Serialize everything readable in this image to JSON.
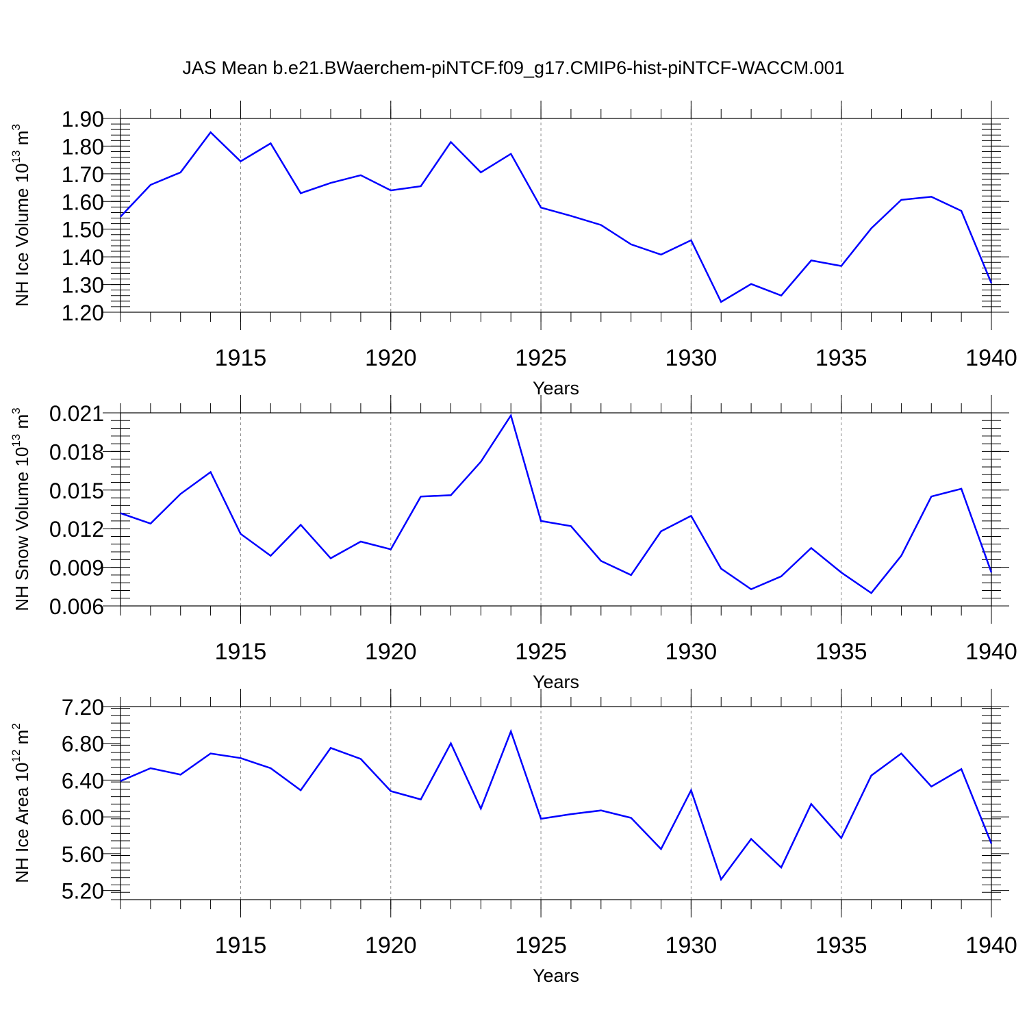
{
  "title": "JAS Mean b.e21.BWaerchem-piNTCF.f09_g17.CMIP6-hist-piNTCF-WACCM.001",
  "colors": {
    "line": "#0000ff",
    "axis": "#000000",
    "grid": "#888888"
  },
  "chart_data": [
    {
      "type": "line",
      "title": "JAS Mean b.e21.BWaerchem-piNTCF.f09_g17.CMIP6-hist-piNTCF-WACCM.001",
      "xlabel": "Years",
      "ylabel": "NH Ice Volume 10",
      "ylabel_exp": "13",
      "ylabel_unit": " m",
      "ylabel_unit_exp": "3",
      "xlim": [
        1911,
        1940
      ],
      "ylim": [
        1.2,
        1.9
      ],
      "xticks": [
        1915,
        1920,
        1925,
        1930,
        1935,
        1940
      ],
      "xticklabels": [
        "1915",
        "1920",
        "1925",
        "1930",
        "1935",
        "1940"
      ],
      "yticks": [
        1.2,
        1.3,
        1.4,
        1.5,
        1.6,
        1.7,
        1.8,
        1.9
      ],
      "yticklabels": [
        "1.20",
        "1.30",
        "1.40",
        "1.50",
        "1.60",
        "1.70",
        "1.80",
        "1.90"
      ],
      "x": [
        1911,
        1912,
        1913,
        1914,
        1915,
        1916,
        1917,
        1918,
        1919,
        1920,
        1921,
        1922,
        1923,
        1924,
        1925,
        1926,
        1927,
        1928,
        1929,
        1930,
        1931,
        1932,
        1933,
        1934,
        1935,
        1936,
        1937,
        1938,
        1939,
        1940
      ],
      "values": [
        1.545,
        1.66,
        1.705,
        1.85,
        1.745,
        1.81,
        1.63,
        1.667,
        1.695,
        1.64,
        1.655,
        1.815,
        1.705,
        1.772,
        1.578,
        1.548,
        1.515,
        1.445,
        1.408,
        1.46,
        1.237,
        1.302,
        1.26,
        1.387,
        1.367,
        1.503,
        1.606,
        1.617,
        1.566,
        1.305
      ]
    },
    {
      "type": "line",
      "xlabel": "Years",
      "ylabel": "NH Snow Volume 10",
      "ylabel_exp": "13",
      "ylabel_unit": " m",
      "ylabel_unit_exp": "3",
      "xlim": [
        1911,
        1940
      ],
      "ylim": [
        0.006,
        0.021
      ],
      "xticks": [
        1915,
        1920,
        1925,
        1930,
        1935,
        1940
      ],
      "xticklabels": [
        "1915",
        "1920",
        "1925",
        "1930",
        "1935",
        "1940"
      ],
      "yticks": [
        0.006,
        0.009,
        0.012,
        0.015,
        0.018,
        0.021
      ],
      "yticklabels": [
        "0.006",
        "0.009",
        "0.012",
        "0.015",
        "0.018",
        "0.021"
      ],
      "x": [
        1911,
        1912,
        1913,
        1914,
        1915,
        1916,
        1917,
        1918,
        1919,
        1920,
        1921,
        1922,
        1923,
        1924,
        1925,
        1926,
        1927,
        1928,
        1929,
        1930,
        1931,
        1932,
        1933,
        1934,
        1935,
        1936,
        1937,
        1938,
        1939,
        1940
      ],
      "values": [
        0.0132,
        0.0124,
        0.0147,
        0.0164,
        0.0116,
        0.0099,
        0.0123,
        0.0097,
        0.011,
        0.0104,
        0.0145,
        0.0146,
        0.0172,
        0.0208,
        0.0126,
        0.0122,
        0.0095,
        0.0084,
        0.0118,
        0.013,
        0.0089,
        0.0073,
        0.0083,
        0.0105,
        0.0086,
        0.007,
        0.0099,
        0.0145,
        0.0151,
        0.0086
      ]
    },
    {
      "type": "line",
      "xlabel": "Years",
      "ylabel": "NH Ice Area 10",
      "ylabel_exp": "12",
      "ylabel_unit": " m",
      "ylabel_unit_exp": "2",
      "xlim": [
        1911,
        1940
      ],
      "ylim": [
        5.1,
        7.2
      ],
      "xticks": [
        1915,
        1920,
        1925,
        1930,
        1935,
        1940
      ],
      "xticklabels": [
        "1915",
        "1920",
        "1925",
        "1930",
        "1935",
        "1940"
      ],
      "yticks": [
        5.2,
        5.6,
        6.0,
        6.4,
        6.8,
        7.2
      ],
      "yticklabels": [
        "5.20",
        "5.60",
        "6.00",
        "6.40",
        "6.80",
        "7.20"
      ],
      "x": [
        1911,
        1912,
        1913,
        1914,
        1915,
        1916,
        1917,
        1918,
        1919,
        1920,
        1921,
        1922,
        1923,
        1924,
        1925,
        1926,
        1927,
        1928,
        1929,
        1930,
        1931,
        1932,
        1933,
        1934,
        1935,
        1936,
        1937,
        1938,
        1939,
        1940
      ],
      "values": [
        6.39,
        6.53,
        6.46,
        6.69,
        6.64,
        6.53,
        6.29,
        6.75,
        6.63,
        6.28,
        6.19,
        6.8,
        6.09,
        6.93,
        5.98,
        6.03,
        6.07,
        5.99,
        5.65,
        6.29,
        5.32,
        5.76,
        5.45,
        6.14,
        5.77,
        6.45,
        6.69,
        6.33,
        6.52,
        5.71
      ]
    }
  ]
}
